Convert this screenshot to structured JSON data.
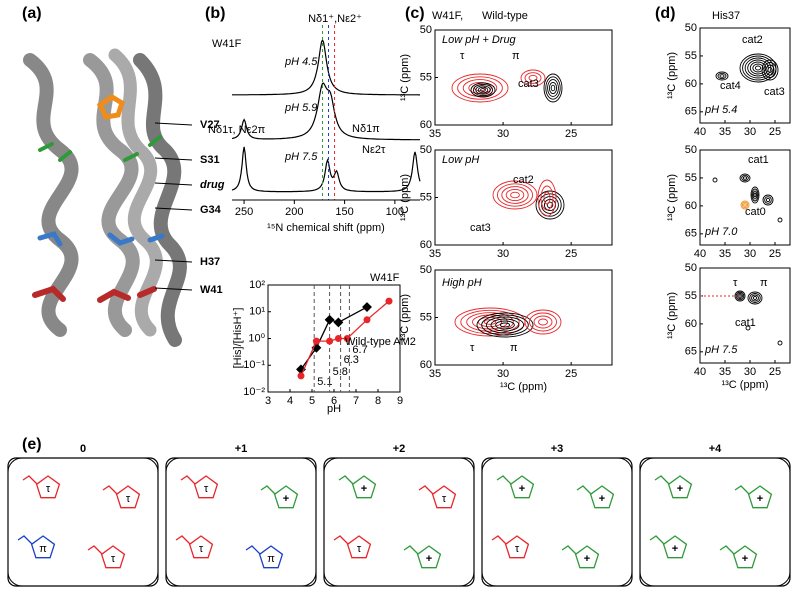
{
  "panel_labels": [
    "(a)",
    "(b)",
    "(c)",
    "(d)",
    "(e)"
  ],
  "a": {
    "labels": [
      "V27",
      "S31",
      "drug",
      "G34",
      "H37",
      "W41"
    ]
  },
  "b": {
    "sample": "W41F",
    "peak_labels": [
      "Nδ1⁺,Nε2⁺",
      "Nδ1τ, Nε2π",
      "Nδ1π",
      "Nε2τ"
    ],
    "spectra": [
      "pH 4.5",
      "pH 5.9",
      "pH 7.5"
    ],
    "xlabel": "¹⁵N chemical shift (ppm)",
    "xlim": [
      262,
      75
    ],
    "xticks": [
      250,
      200,
      150,
      100
    ],
    "plot": {
      "type": "scatter",
      "ylabel": "[His]/[HisH⁺]",
      "xlabel": "pH",
      "xlim": [
        3,
        9
      ],
      "xticks": [
        3,
        4,
        5,
        6,
        7,
        8,
        9
      ],
      "ylim": [
        0.01,
        100
      ],
      "log_y": true,
      "yticks": [
        {
          "value": 0.01,
          "label": "10⁻²"
        },
        {
          "value": 0.1,
          "label": "10⁻¹"
        },
        {
          "value": 1,
          "label": "10⁰"
        },
        {
          "value": 10,
          "label": "10¹"
        },
        {
          "value": 100,
          "label": "10²"
        }
      ],
      "pka": [
        5.1,
        5.8,
        6.3,
        6.7
      ],
      "series": [
        {
          "name": "W41F",
          "color": "#000000",
          "x": [
            4.5,
            5.2,
            5.8,
            6.2,
            7.5
          ],
          "values": [
            0.07,
            0.45,
            5,
            4,
            15
          ]
        },
        {
          "name": "Wild-type AM2",
          "color": "#e8262a",
          "x": [
            4.5,
            5.2,
            5.8,
            6.2,
            6.6,
            7.5,
            8.5
          ],
          "values": [
            0.04,
            0.8,
            0.8,
            1,
            1,
            5,
            25
          ]
        }
      ]
    }
  },
  "c": {
    "title": [
      "W41F, ",
      "Wild-type"
    ],
    "ylabel": "¹³C (ppm)",
    "xlabel": "¹³C (ppm)",
    "xlim": [
      35,
      22
    ],
    "ylim": [
      50,
      60
    ],
    "xticks": [
      35,
      30,
      25
    ],
    "yticks": [
      50,
      55,
      60
    ],
    "boxes": [
      {
        "condition": "Low pH + Drug",
        "labels": [
          "τ",
          "π",
          "cat3"
        ]
      },
      {
        "condition": "Low pH",
        "labels": [
          "cat2",
          "cat3"
        ]
      },
      {
        "condition": "High pH",
        "labels": [
          "τ",
          "π"
        ]
      }
    ]
  },
  "d": {
    "title": "His37",
    "ylabel": "¹³C (ppm)",
    "xlabel": "¹³C (ppm)",
    "xlim": [
      40,
      22
    ],
    "ylim": [
      50,
      67
    ],
    "xticks": [
      40,
      35,
      30,
      25
    ],
    "yticks": [
      50,
      55,
      60,
      65
    ],
    "boxes": [
      {
        "condition": "pH 5.4",
        "labels": [
          "cat2",
          "cat4",
          "cat3"
        ]
      },
      {
        "condition": "pH 7.0",
        "labels": [
          "cat1",
          "cat0"
        ]
      },
      {
        "condition": "pH 7.5",
        "labels": [
          "τ",
          "π",
          "cat1"
        ]
      }
    ]
  },
  "e": {
    "states": [
      {
        "charge": "0",
        "residues": [
          "τ",
          "τ",
          "π",
          "τ"
        ]
      },
      {
        "charge": "+1",
        "residues": [
          "τ",
          "+",
          "τ",
          "π"
        ]
      },
      {
        "charge": "+2",
        "residues": [
          "+",
          "τ",
          "τ",
          "+"
        ]
      },
      {
        "charge": "+3",
        "residues": [
          "+",
          "+",
          "τ",
          "+"
        ]
      },
      {
        "charge": "+4",
        "residues": [
          "+",
          "+",
          "+",
          "+"
        ]
      }
    ]
  }
}
